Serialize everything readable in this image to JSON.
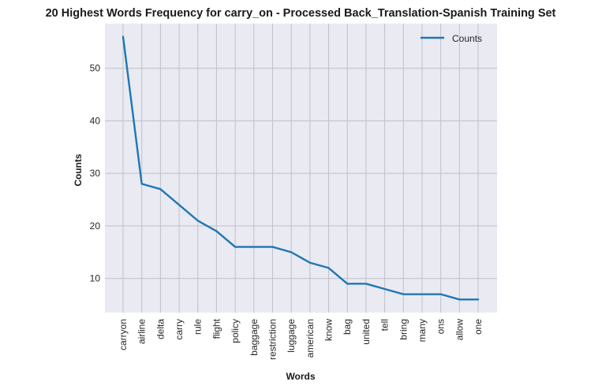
{
  "chart_data": {
    "type": "line",
    "title": "20 Highest Words Frequency for carry_on - Processed Back_Translation-Spanish Training Set",
    "xlabel": "Words",
    "ylabel": "Counts",
    "categories": [
      "carryon",
      "airline",
      "delta",
      "carry",
      "rule",
      "flight",
      "policy",
      "baggage",
      "restriction",
      "luggage",
      "american",
      "know",
      "bag",
      "united",
      "tell",
      "bring",
      "many",
      "ons",
      "allow",
      "one"
    ],
    "series": [
      {
        "name": "Counts",
        "values": [
          56,
          28,
          27,
          24,
          21,
          19,
          16,
          16,
          16,
          15,
          13,
          12,
          9,
          9,
          8,
          7,
          7,
          7,
          6,
          6
        ]
      }
    ],
    "ylim": [
      3.5,
      58.5
    ],
    "yticks": [
      10,
      20,
      30,
      40,
      50
    ],
    "grid": true,
    "legend_position": "top-right",
    "colors": {
      "line": "#1f77b4",
      "plot_bg": "#eaeaf2",
      "grid": "#c0c0c8"
    }
  }
}
